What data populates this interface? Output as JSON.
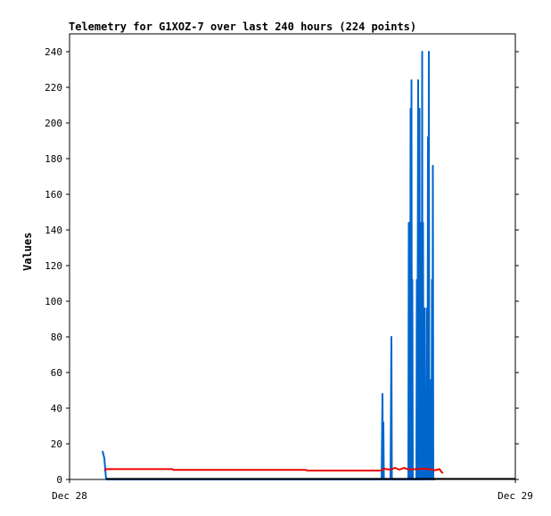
{
  "chart_data": {
    "type": "line",
    "title": "Telemetry for G1XOZ-7 over last 240 hours (224 points)",
    "xlabel": "",
    "ylabel": "Values",
    "x_tick_labels": [
      "Dec 28",
      "Dec 29"
    ],
    "ylim": [
      0,
      250
    ],
    "y_ticks": [
      0,
      20,
      40,
      60,
      80,
      100,
      120,
      140,
      160,
      180,
      200,
      220,
      240
    ],
    "grid": false,
    "legend": "none",
    "series": [
      {
        "color": "#0066cc",
        "points": [
          [
            0.074,
            16
          ],
          [
            0.078,
            12
          ],
          [
            0.082,
            0
          ],
          [
            0.7,
            0
          ],
          [
            0.702,
            48
          ],
          [
            0.703,
            0
          ],
          [
            0.704,
            32
          ],
          [
            0.705,
            0
          ],
          [
            0.72,
            0
          ],
          [
            0.722,
            80
          ],
          [
            0.723,
            0
          ],
          [
            0.76,
            0
          ],
          [
            0.761,
            144
          ],
          [
            0.762,
            0
          ],
          [
            0.763,
            72
          ],
          [
            0.764,
            0
          ],
          [
            0.765,
            208
          ],
          [
            0.766,
            0
          ],
          [
            0.767,
            224
          ],
          [
            0.768,
            0
          ],
          [
            0.769,
            112
          ],
          [
            0.77,
            0
          ],
          [
            0.778,
            0
          ],
          [
            0.779,
            112
          ],
          [
            0.78,
            0
          ],
          [
            0.782,
            224
          ],
          [
            0.783,
            0
          ],
          [
            0.785,
            208
          ],
          [
            0.786,
            0
          ],
          [
            0.787,
            40
          ],
          [
            0.788,
            0
          ],
          [
            0.789,
            144
          ],
          [
            0.79,
            0
          ],
          [
            0.791,
            240
          ],
          [
            0.792,
            0
          ],
          [
            0.793,
            144
          ],
          [
            0.794,
            0
          ],
          [
            0.795,
            72
          ],
          [
            0.796,
            0
          ],
          [
            0.797,
            96
          ],
          [
            0.798,
            0
          ],
          [
            0.8,
            48
          ],
          [
            0.801,
            0
          ],
          [
            0.802,
            96
          ],
          [
            0.803,
            0
          ],
          [
            0.804,
            192
          ],
          [
            0.805,
            0
          ],
          [
            0.806,
            240
          ],
          [
            0.807,
            0
          ],
          [
            0.808,
            24
          ],
          [
            0.809,
            0
          ],
          [
            0.811,
            56
          ],
          [
            0.812,
            0
          ],
          [
            0.813,
            112
          ],
          [
            0.814,
            0
          ],
          [
            0.815,
            176
          ],
          [
            0.816,
            0
          ],
          [
            0.82,
            0
          ]
        ]
      },
      {
        "color": "#ee0000",
        "points": [
          [
            0.078,
            5
          ],
          [
            0.082,
            5.8
          ],
          [
            0.23,
            5.8
          ],
          [
            0.233,
            5.4
          ],
          [
            0.53,
            5.4
          ],
          [
            0.533,
            5.0
          ],
          [
            0.7,
            5.0
          ],
          [
            0.705,
            6.0
          ],
          [
            0.72,
            5.5
          ],
          [
            0.73,
            6.5
          ],
          [
            0.74,
            5.5
          ],
          [
            0.75,
            6.5
          ],
          [
            0.76,
            5.6
          ],
          [
            0.8,
            6.0
          ],
          [
            0.82,
            5.2
          ],
          [
            0.83,
            5.8
          ],
          [
            0.835,
            4.0
          ],
          [
            0.838,
            3.6
          ]
        ]
      },
      {
        "color": "#000000",
        "points": [
          [
            0.082,
            0.3
          ],
          [
            1.0,
            0.3
          ]
        ]
      }
    ]
  }
}
